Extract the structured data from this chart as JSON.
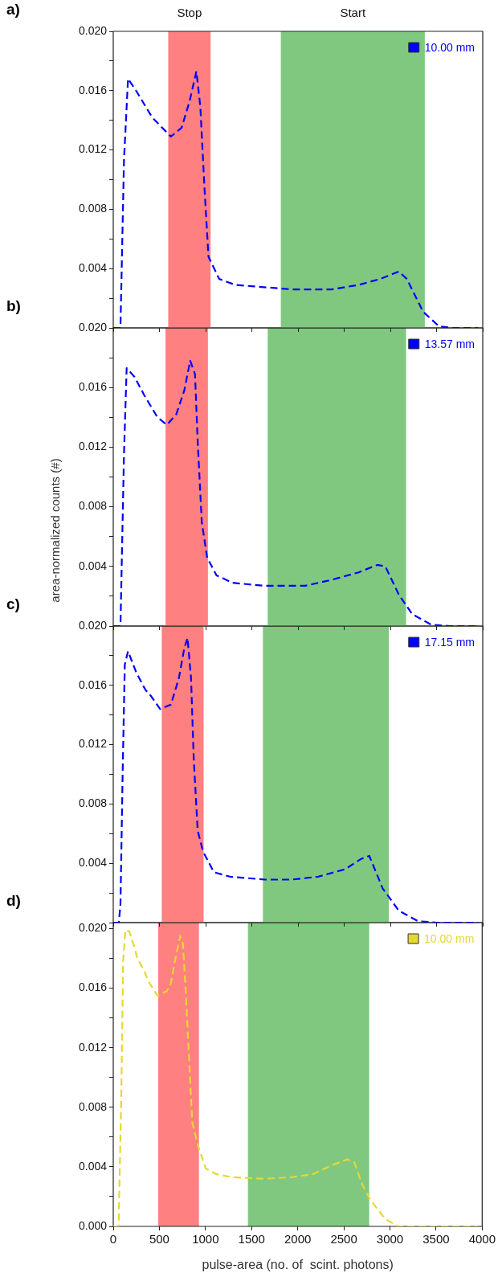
{
  "chart_data": [
    {
      "type": "line",
      "annotations": [
        "a)"
      ],
      "xlim": [
        0,
        4000
      ],
      "xticks": [
        0,
        500,
        1000,
        1500,
        2000,
        2500,
        3000,
        3500,
        4000
      ],
      "ylim": [
        0,
        0.02
      ],
      "yticks": [
        {
          "value": 0,
          "label": null
        },
        {
          "value": 0.002,
          "label": null
        },
        {
          "value": 0.004,
          "label": "0.004"
        },
        {
          "value": 0.006,
          "label": null
        },
        {
          "value": 0.008,
          "label": "0.008"
        },
        {
          "value": 0.01,
          "label": null
        },
        {
          "value": 0.012,
          "label": "0.012"
        },
        {
          "value": 0.014,
          "label": null
        },
        {
          "value": 0.016,
          "label": "0.016"
        },
        {
          "value": 0.018,
          "label": null
        },
        {
          "value": 0.02,
          "label": "0.020"
        }
      ],
      "tick_labels": "y",
      "legend": "top right",
      "line_style": "dashed",
      "bands": [
        {
          "axis": "x",
          "from": 595,
          "to": 1054,
          "label": "Stop",
          "color": "#ff8080"
        },
        {
          "axis": "x",
          "from": 1814,
          "to": 3373,
          "label": "Start",
          "color": "#80c880"
        }
      ],
      "series": [
        {
          "name": "10.00 mm",
          "color": "#0000ff",
          "x": [
            0,
            78,
            116,
            160,
            247,
            421,
            624,
            740,
            827,
            900,
            943,
            987,
            1031,
            1147,
            1321,
            1524,
            1930,
            2366,
            2656,
            2889,
            3092,
            3179,
            3353,
            3527,
            3672,
            3950
          ],
          "values": [
            0,
            0,
            0.0113,
            0.0168,
            0.016,
            0.0142,
            0.0129,
            0.0135,
            0.0153,
            0.0173,
            0.0149,
            0.0095,
            0.0048,
            0.0033,
            0.0029,
            0.0028,
            0.0026,
            0.0026,
            0.0029,
            0.0033,
            0.0038,
            0.0033,
            0.0011,
            0.0001,
            0,
            0
          ]
        }
      ]
    },
    {
      "type": "line",
      "annotations": [
        "b)"
      ],
      "ylabel": "area-normalized counts (#)",
      "xlim": [
        0,
        4000
      ],
      "xticks": [
        0,
        500,
        1000,
        1500,
        2000,
        2500,
        3000,
        3500,
        4000
      ],
      "ylim": [
        0,
        0.02
      ],
      "yticks": [
        {
          "value": 0,
          "label": null
        },
        {
          "value": 0.002,
          "label": null
        },
        {
          "value": 0.004,
          "label": "0.004"
        },
        {
          "value": 0.006,
          "label": null
        },
        {
          "value": 0.008,
          "label": "0.008"
        },
        {
          "value": 0.01,
          "label": null
        },
        {
          "value": 0.012,
          "label": "0.012"
        },
        {
          "value": 0.014,
          "label": null
        },
        {
          "value": 0.016,
          "label": "0.016"
        },
        {
          "value": 0.018,
          "label": null
        },
        {
          "value": 0.02,
          "label": "0.020"
        }
      ],
      "tick_labels": "y",
      "legend": "top right",
      "line_style": "dashed",
      "bands": [
        {
          "axis": "x",
          "from": 566,
          "to": 1025,
          "color": "#ff8080"
        },
        {
          "axis": "x",
          "from": 1672,
          "to": 3170,
          "color": "#80c880"
        }
      ],
      "series": [
        {
          "name": "13.57 mm",
          "color": "#0000ff",
          "x": [
            0,
            78,
            116,
            145,
            232,
            334,
            479,
            581,
            682,
            769,
            833,
            885,
            914,
            958,
            1016,
            1118,
            1292,
            1640,
            2076,
            2366,
            2656,
            2859,
            2946,
            3092,
            3237,
            3440,
            3643,
            3950
          ],
          "values": [
            0,
            0,
            0.0115,
            0.0173,
            0.0167,
            0.0155,
            0.014,
            0.0135,
            0.0142,
            0.0158,
            0.0178,
            0.0169,
            0.0124,
            0.007,
            0.0046,
            0.0034,
            0.0029,
            0.0027,
            0.0027,
            0.0031,
            0.0036,
            0.0041,
            0.004,
            0.0021,
            0.0008,
            0.0001,
            0,
            0
          ]
        }
      ]
    },
    {
      "type": "line",
      "annotations": [
        "c)"
      ],
      "xlim": [
        0,
        4000
      ],
      "xticks": [
        0,
        500,
        1000,
        1500,
        2000,
        2500,
        3000,
        3500,
        4000
      ],
      "ylim": [
        0,
        0.02
      ],
      "yticks": [
        {
          "value": 0,
          "label": null
        },
        {
          "value": 0.002,
          "label": null
        },
        {
          "value": 0.004,
          "label": "0.004"
        },
        {
          "value": 0.006,
          "label": null
        },
        {
          "value": 0.008,
          "label": "0.008"
        },
        {
          "value": 0.01,
          "label": null
        },
        {
          "value": 0.012,
          "label": "0.012"
        },
        {
          "value": 0.014,
          "label": null
        },
        {
          "value": 0.016,
          "label": "0.016"
        },
        {
          "value": 0.018,
          "label": null
        },
        {
          "value": 0.02,
          "label": "0.020"
        }
      ],
      "tick_labels": "y",
      "legend": "top right",
      "line_style": "dashed",
      "bands": [
        {
          "axis": "x",
          "from": 525,
          "to": 978,
          "color": "#ff8080"
        },
        {
          "axis": "x",
          "from": 1620,
          "to": 2984,
          "color": "#80c880"
        }
      ],
      "series": [
        {
          "name": "17.15 mm",
          "color": "#0000ff",
          "x": [
            0,
            60,
            78,
            102,
            125,
            160,
            247,
            348,
            406,
            508,
            624,
            711,
            769,
            804,
            842,
            871,
            914,
            972,
            1089,
            1263,
            1640,
            1930,
            2221,
            2511,
            2685,
            2772,
            2917,
            3092,
            3300,
            3500,
            3950
          ],
          "values": [
            0,
            0,
            0.0012,
            0.0102,
            0.0174,
            0.0183,
            0.0169,
            0.0157,
            0.0153,
            0.0144,
            0.0147,
            0.0165,
            0.0185,
            0.0192,
            0.0165,
            0.0111,
            0.0062,
            0.0048,
            0.0034,
            0.0031,
            0.0029,
            0.0029,
            0.0031,
            0.0036,
            0.0043,
            0.0045,
            0.0023,
            0.0008,
            0.0001,
            0,
            0
          ]
        }
      ]
    },
    {
      "type": "line",
      "annotations": [
        "d)"
      ],
      "xlabel": "pulse-area (no. of  scint. photons)",
      "xlim": [
        0,
        4000
      ],
      "xticks": [
        0,
        500,
        1000,
        1500,
        2000,
        2500,
        3000,
        3500,
        4000
      ],
      "ylim": [
        0,
        0.0204
      ],
      "yticks": [
        {
          "value": 0,
          "label": "0.000"
        },
        {
          "value": 0.002,
          "label": null
        },
        {
          "value": 0.004,
          "label": "0.004"
        },
        {
          "value": 0.006,
          "label": null
        },
        {
          "value": 0.008,
          "label": "0.008"
        },
        {
          "value": 0.01,
          "label": null
        },
        {
          "value": 0.012,
          "label": "0.012"
        },
        {
          "value": 0.014,
          "label": null
        },
        {
          "value": 0.016,
          "label": "0.016"
        },
        {
          "value": 0.018,
          "label": null
        },
        {
          "value": 0.02,
          "label": "0.020"
        }
      ],
      "legend": "top right",
      "line_style": "dashed",
      "bands": [
        {
          "axis": "x",
          "from": 488,
          "to": 929,
          "color": "#ff8080"
        },
        {
          "axis": "x",
          "from": 1460,
          "to": 2775,
          "color": "#80c880"
        }
      ],
      "series": [
        {
          "name": "10.00 mm",
          "color": "#e6d830",
          "x": [
            0,
            58,
            87,
            107,
            131,
            174,
            232,
            261,
            334,
            377,
            479,
            581,
            624,
            668,
            726,
            755,
            784,
            813,
            856,
            915,
            1002,
            1118,
            1292,
            1640,
            1930,
            2163,
            2366,
            2540,
            2613,
            2700,
            2787,
            2947,
            3092,
            3950
          ],
          "values": [
            0,
            0,
            0.0088,
            0.0178,
            0.0199,
            0.0198,
            0.0187,
            0.018,
            0.0172,
            0.0165,
            0.0155,
            0.0158,
            0.0163,
            0.0178,
            0.0195,
            0.019,
            0.016,
            0.0124,
            0.007,
            0.0055,
            0.0039,
            0.0035,
            0.0033,
            0.0032,
            0.0033,
            0.0035,
            0.0041,
            0.0045,
            0.0043,
            0.0028,
            0.0018,
            0.0005,
            0,
            0
          ]
        }
      ]
    }
  ]
}
